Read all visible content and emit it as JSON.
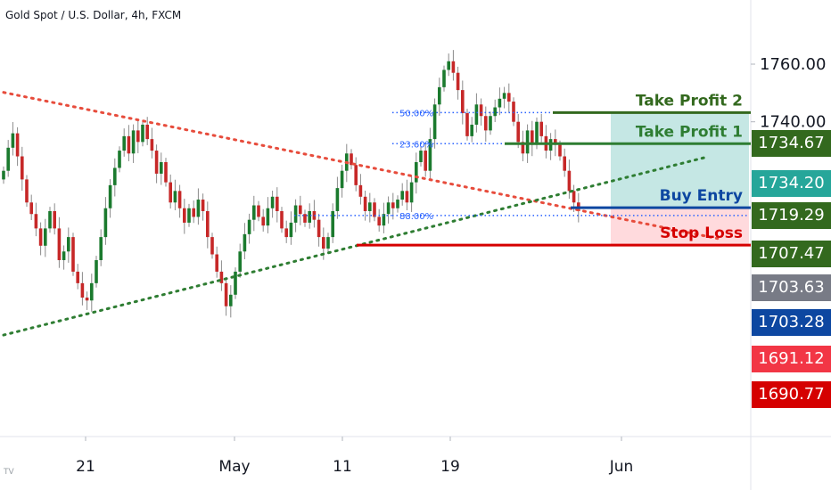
{
  "chart_data": {
    "type": "candlestick",
    "title": "Gold Spot / U.S. Dollar, 4h, FXCM",
    "y_axis_ticks": [
      "1760.00",
      "1740.00"
    ],
    "x_axis_ticks": [
      "21",
      "May",
      "11",
      "19",
      "Jun"
    ],
    "ylim": [
      1660,
      1770
    ],
    "price_labels": [
      {
        "value": "1734.67",
        "color": "#33691e"
      },
      {
        "value": "1734.20",
        "color": "#26a69a"
      },
      {
        "value": "1719.29",
        "color": "#33691e"
      },
      {
        "value": "1707.47",
        "color": "#33691e"
      },
      {
        "value": "1703.63",
        "color": "#787b86"
      },
      {
        "value": "1703.28",
        "color": "#0d47a1"
      },
      {
        "value": "1691.12",
        "color": "#f23645"
      },
      {
        "value": "1690.77",
        "color": "#d50000"
      }
    ],
    "levels": [
      {
        "name": "Take Profit 2",
        "price": 1743.2,
        "color": "#33691e"
      },
      {
        "name": "Take Profit 1",
        "price": 1732.4,
        "color": "#2e7d32"
      },
      {
        "name": "Buy Entry",
        "price": 1710.2,
        "color": "#0d47a1"
      },
      {
        "name": "Stop Loss",
        "price": 1697.2,
        "color": "#d50000"
      }
    ],
    "fib_levels": [
      {
        "label": "50.00%",
        "price": 1743.2
      },
      {
        "label": "23.60%",
        "price": 1732.4
      },
      {
        "label": "88.00%",
        "price": 1707.5
      }
    ],
    "trendlines": [
      {
        "name": "resistance",
        "color": "#e74c3c",
        "from": [
          0,
          1750.2
        ],
        "to": [
          154,
          1699.5
        ]
      },
      {
        "name": "support",
        "color": "#2e7d32",
        "from": [
          0,
          1666.0
        ],
        "to": [
          151,
          1727.5
        ]
      }
    ],
    "closes": [
      1723,
      1731,
      1736,
      1728,
      1720,
      1712,
      1708,
      1703,
      1697,
      1703,
      1709,
      1703,
      1692,
      1695,
      1700,
      1688,
      1684,
      1679,
      1678,
      1684,
      1692,
      1700,
      1710,
      1718,
      1724,
      1730,
      1735,
      1729,
      1737,
      1733,
      1739,
      1734,
      1730,
      1722,
      1726,
      1719,
      1712,
      1716,
      1710,
      1705,
      1710,
      1707,
      1713,
      1709,
      1700,
      1694,
      1688,
      1684,
      1676,
      1680,
      1688,
      1695,
      1701,
      1706,
      1711,
      1707,
      1704,
      1710,
      1714,
      1709,
      1703,
      1700,
      1705,
      1711,
      1708,
      1705,
      1709,
      1706,
      1700,
      1696,
      1700,
      1709,
      1717,
      1723,
      1729,
      1725,
      1718,
      1714,
      1709,
      1712,
      1707,
      1704,
      1708,
      1712,
      1710,
      1713,
      1716,
      1712,
      1719,
      1726,
      1730,
      1723,
      1734,
      1746,
      1752,
      1758,
      1761,
      1757,
      1751,
      1743,
      1735,
      1739,
      1746,
      1742,
      1737,
      1742,
      1745,
      1748,
      1750,
      1747,
      1740,
      1733,
      1729,
      1737,
      1732,
      1740,
      1735,
      1730,
      1734,
      1732,
      1728,
      1723,
      1716,
      1712,
      1709
    ],
    "grid": false,
    "legend": "none"
  }
}
